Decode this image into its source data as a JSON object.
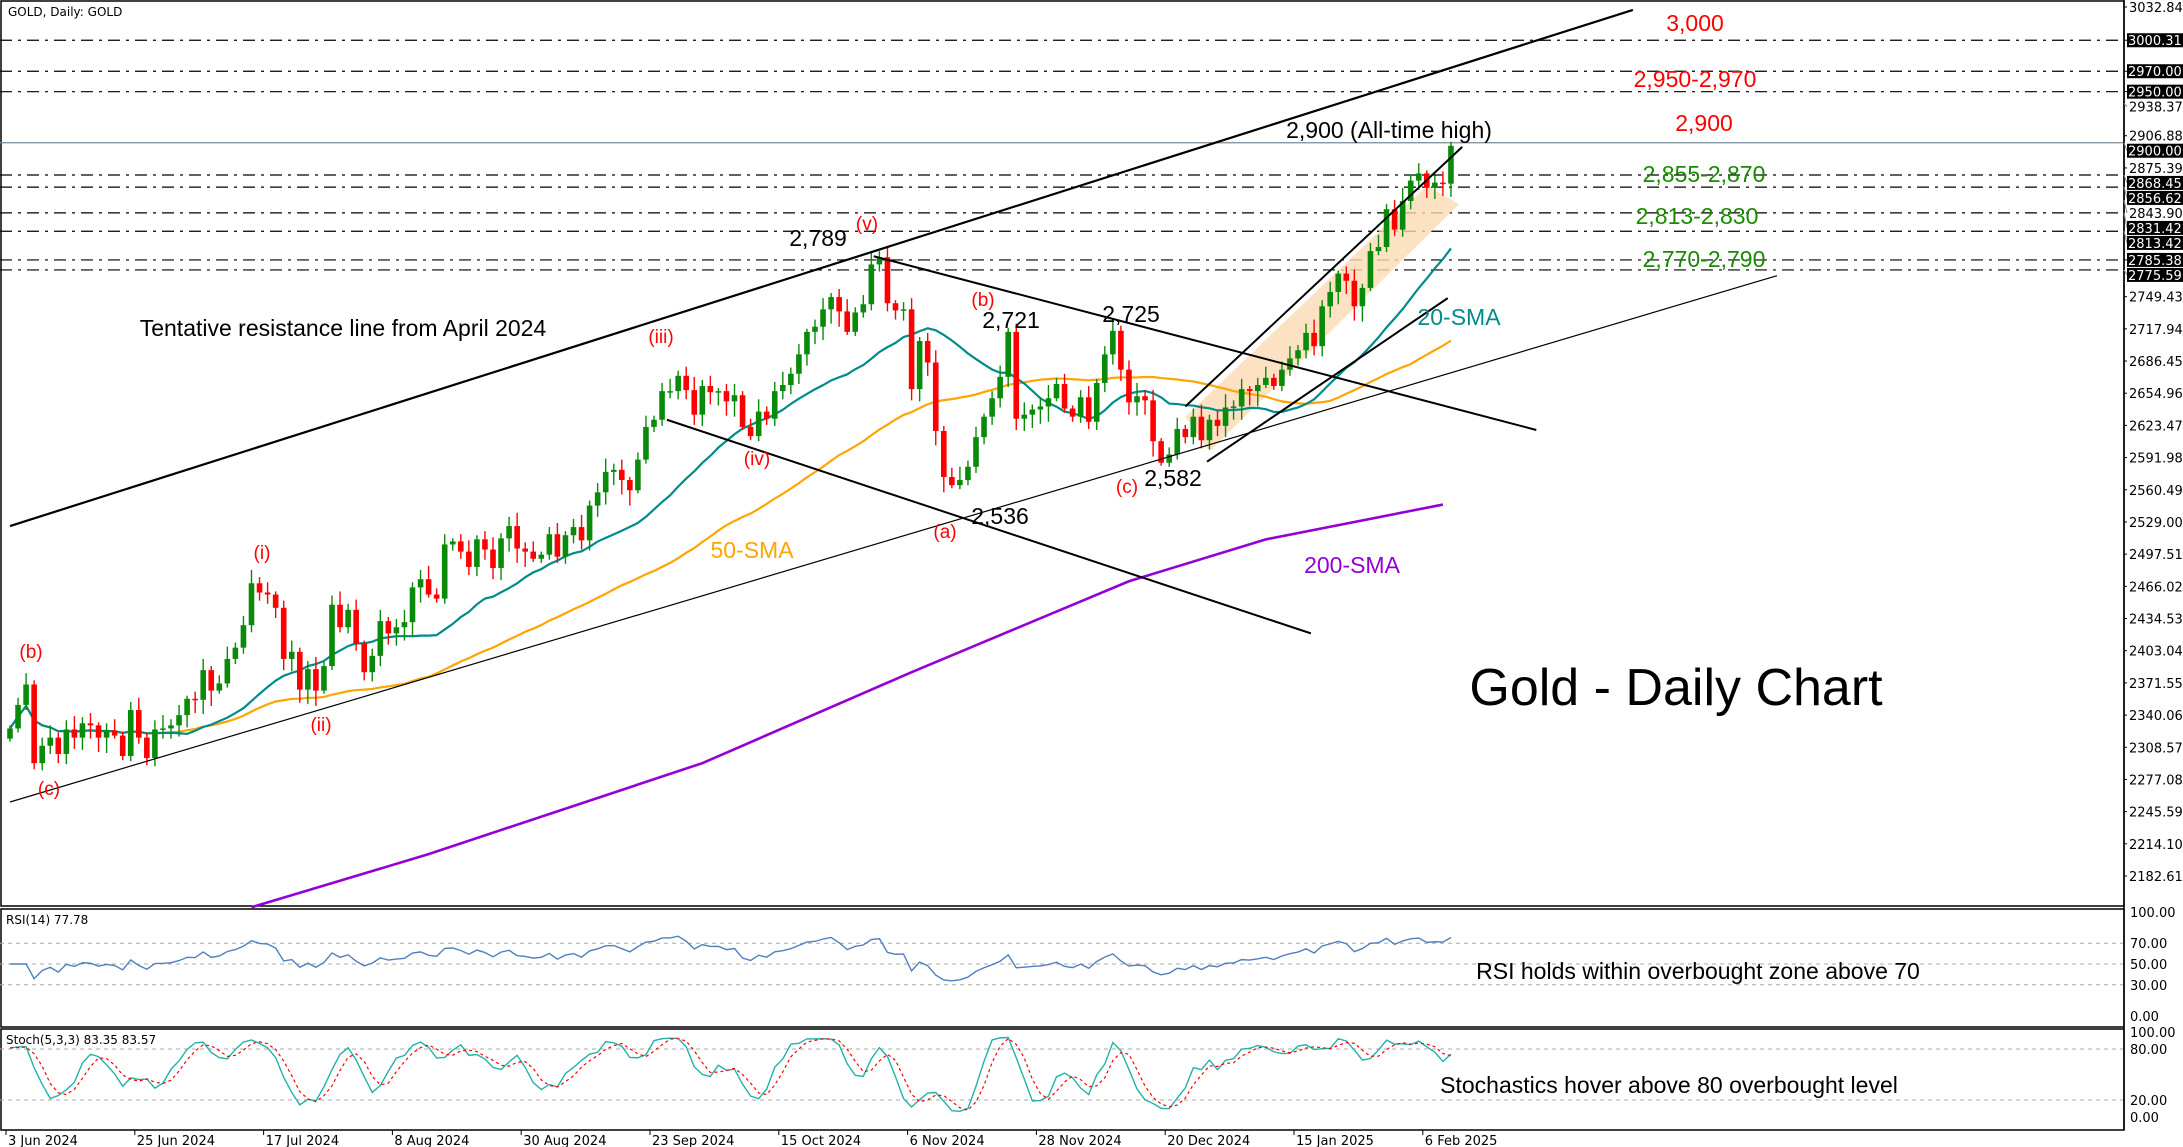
{
  "header": {
    "symbol_label": "GOLD, Daily:  GOLD"
  },
  "colors": {
    "bull": "#0a8a0a",
    "bear": "#ff0000",
    "sma20": "#008b8b",
    "sma50": "#ffa500",
    "sma200": "#9400d3",
    "rsi": "#4f7fbf",
    "stoch_main": "#20b2aa",
    "stoch_signal": "#ff0000",
    "channel_fill": "#fcd9b4"
  },
  "chart_data": [
    {
      "type": "candlestick",
      "title": "Gold - Daily Chart",
      "x_ticks": [
        "3 Jun 2024",
        "25 Jun 2024",
        "17 Jul 2024",
        "8 Aug 2024",
        "30 Aug 2024",
        "23 Sep 2024",
        "15 Oct 2024",
        "6 Nov 2024",
        "28 Nov 2024",
        "20 Dec 2024",
        "15 Jan 2025",
        "6 Feb 2025"
      ],
      "x_tick_every_bars": 16,
      "y_ticks": [
        "3032.84",
        "2938.37",
        "2906.88",
        "2875.39",
        "2843.90",
        "2749.43",
        "2717.94",
        "2686.45",
        "2654.96",
        "2623.47",
        "2591.98",
        "2560.49",
        "2529.00",
        "2497.51",
        "2466.02",
        "2434.53",
        "2403.04",
        "2371.55",
        "2340.06",
        "2308.57",
        "2277.08",
        "2245.59",
        "2214.10",
        "2182.61"
      ],
      "ylim": [
        2182.61,
        3032.84
      ],
      "close": [
        2327,
        2350,
        2370,
        2293,
        2310,
        2318,
        2302,
        2326,
        2318,
        2332,
        2330,
        2318,
        2325,
        2320,
        2300,
        2345,
        2318,
        2298,
        2326,
        2327,
        2330,
        2340,
        2356,
        2355,
        2384,
        2364,
        2371,
        2395,
        2406,
        2428,
        2469,
        2460,
        2458,
        2445,
        2395,
        2402,
        2365,
        2385,
        2364,
        2388,
        2448,
        2426,
        2443,
        2410,
        2382,
        2398,
        2432,
        2420,
        2426,
        2431,
        2465,
        2473,
        2458,
        2454,
        2507,
        2510,
        2500,
        2485,
        2512,
        2502,
        2484,
        2513,
        2525,
        2503,
        2500,
        2493,
        2497,
        2517,
        2495,
        2516,
        2524,
        2511,
        2545,
        2558,
        2578,
        2580,
        2570,
        2560,
        2590,
        2622,
        2629,
        2657,
        2657,
        2672,
        2658,
        2634,
        2662,
        2656,
        2657,
        2647,
        2653,
        2622,
        2613,
        2637,
        2630,
        2657,
        2663,
        2674,
        2693,
        2715,
        2720,
        2737,
        2749,
        2735,
        2715,
        2734,
        2742,
        2781,
        2788,
        2743,
        2736,
        2737,
        2659,
        2706,
        2685,
        2618,
        2573,
        2565,
        2570,
        2583,
        2612,
        2632,
        2650,
        2671,
        2715,
        2630,
        2634,
        2639,
        2642,
        2650,
        2664,
        2640,
        2632,
        2651,
        2627,
        2665,
        2693,
        2716,
        2678,
        2646,
        2652,
        2648,
        2608,
        2587,
        2595,
        2620,
        2612,
        2632,
        2609,
        2629,
        2623,
        2641,
        2642,
        2659,
        2657,
        2663,
        2670,
        2662,
        2678,
        2689,
        2697,
        2714,
        2701,
        2740,
        2754,
        2772,
        2765,
        2740,
        2758,
        2794,
        2798,
        2835,
        2815,
        2843,
        2863,
        2870,
        2856,
        2861,
        2860,
        2897
      ],
      "sma200_points": [
        [
          30,
          2152
        ],
        [
          52,
          2204
        ],
        [
          86,
          2293
        ],
        [
          112,
          2382
        ],
        [
          139,
          2471
        ],
        [
          156,
          2512
        ],
        [
          178,
          2546
        ]
      ],
      "levels": [
        {
          "price": 3000.31,
          "axis_label": "3000.31"
        },
        {
          "price": 2970.0,
          "axis_label": "2970.00"
        },
        {
          "price": 2950.0,
          "axis_label": "2950.00"
        },
        {
          "price": 2900.0,
          "axis_label": "2900.00"
        },
        {
          "price": 2868.45,
          "axis_label": "2868.45"
        },
        {
          "price": 2856.62,
          "axis_label": "2856.62"
        },
        {
          "price": 2831.42,
          "axis_label": "2831.42"
        },
        {
          "price": 2813.42,
          "axis_label": "2813.42"
        },
        {
          "price": 2785.38,
          "axis_label": "2785.38"
        },
        {
          "price": 2775.59,
          "axis_label": "2775.59"
        }
      ],
      "trendlines": [
        {
          "name": "resistance-line-april-2024",
          "from": [
            0,
            2525
          ],
          "to": [
            201.6,
            3030
          ],
          "width": 2.2
        },
        {
          "name": "support-line",
          "from": [
            0,
            2255
          ],
          "to": [
            219.5,
            2770
          ],
          "width": 1.2
        },
        {
          "name": "descending-channel-upper",
          "from": [
            107.3,
            2789
          ],
          "to": [
            189.6,
            2619
          ],
          "width": 2
        },
        {
          "name": "descending-channel-lower",
          "from": [
            81.6,
            2629
          ],
          "to": [
            161.6,
            2420
          ],
          "width": 2
        },
        {
          "name": "ascending-channel-upper",
          "from": [
            146,
            2642
          ],
          "to": [
            180.4,
            2896
          ],
          "width": 2
        },
        {
          "name": "ascending-channel-lower",
          "from": [
            148.7,
            2588
          ],
          "to": [
            178.6,
            2748
          ],
          "width": 2
        }
      ],
      "channel_zone": [
        [
          146,
          2632
        ],
        [
          176,
          2858
        ],
        [
          180,
          2840
        ],
        [
          149,
          2598
        ]
      ]
    }
  ],
  "annotations": {
    "waves": {
      "b1": "(b)",
      "c1": "(c)",
      "i": "(i)",
      "ii": "(ii)",
      "iii": "(iii)",
      "iv": "(iv)",
      "v": "(v)",
      "b2": "(b)",
      "a": "(a)",
      "c2": "(c)"
    },
    "prices": {
      "p2789": "2,789",
      "p2721": "2,721",
      "p2725": "2,725",
      "p2536": "2,536",
      "p2582": "2,582",
      "ath": "2,900 (All-time high)"
    },
    "levels": {
      "l3000": "3,000",
      "l2950": "2,950-2,970",
      "l2900": "2,900",
      "l2855": "2,855-2,870",
      "l2813": "2,813-2,830",
      "l2770": "2,770-2,790"
    },
    "sma20": "20-SMA",
    "sma50": "50-SMA",
    "sma200": "200-SMA",
    "resistance_note": "Tentative resistance line from April 2024",
    "title": "Gold - Daily Chart",
    "rsi_note": "RSI holds within overbought zone above 70",
    "stoch_note": "Stochastics hover above 80 overbought level"
  },
  "rsi": {
    "label": "RSI(14) 77.78",
    "ticks": [
      "100.00",
      "70.00",
      "50.00",
      "30.00",
      "0.00"
    ],
    "levels": [
      70,
      50,
      30
    ]
  },
  "stoch": {
    "label": "Stoch(5,3,3) 83.35 83.57",
    "ticks": [
      "100.00",
      "80.00",
      "20.00",
      "0.00"
    ],
    "levels": [
      80,
      20
    ]
  }
}
